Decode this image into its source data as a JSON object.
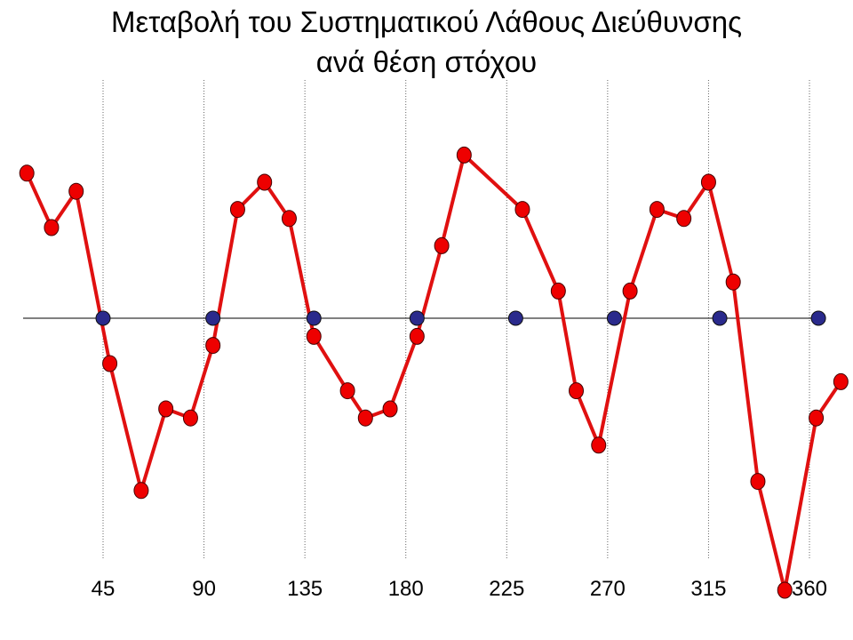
{
  "chart_data": {
    "type": "line",
    "title_line1": "Μεταβολή του Συστηματικού Λάθους Διεύθυνσης",
    "title_line2": "ανά θέση στόχου",
    "xlabel": "",
    "ylabel": "",
    "xlim": [
      4,
      370
    ],
    "ylim": [
      -1.5,
      0.95
    ],
    "grid": "vertical-dotted",
    "legend": "none",
    "x_ticks": [
      45,
      90,
      135,
      180,
      225,
      270,
      315,
      360
    ],
    "colors": {
      "line": "#e01010",
      "marker": "#ee0000",
      "zero_marker": "#2a2a8c"
    },
    "series": [
      {
        "type": "line",
        "points": [
          [
            11,
            0.8
          ],
          [
            22,
            0.5
          ],
          [
            33,
            0.7
          ],
          [
            48,
            -0.25
          ],
          [
            62,
            -0.95
          ],
          [
            73,
            -0.5
          ],
          [
            84,
            -0.55
          ],
          [
            94,
            -0.15
          ],
          [
            105,
            0.6
          ],
          [
            117,
            0.75
          ],
          [
            128,
            0.55
          ],
          [
            139,
            -0.1
          ],
          [
            154,
            -0.4
          ],
          [
            162,
            -0.55
          ],
          [
            173,
            -0.5
          ],
          [
            185,
            -0.1
          ],
          [
            196,
            0.4
          ],
          [
            206,
            0.9
          ],
          [
            232,
            0.6
          ],
          [
            248,
            0.15
          ],
          [
            256,
            -0.4
          ],
          [
            266,
            -0.7
          ],
          [
            280,
            0.15
          ],
          [
            292,
            0.6
          ],
          [
            304,
            0.55
          ],
          [
            315,
            0.75
          ],
          [
            326,
            0.2
          ],
          [
            337,
            -0.9
          ],
          [
            349,
            -1.5
          ],
          [
            363,
            -0.55
          ],
          [
            374,
            -0.35
          ]
        ]
      },
      {
        "type": "points",
        "points": [
          [
            45,
            0
          ],
          [
            94,
            0
          ],
          [
            139,
            0
          ],
          [
            185,
            0
          ],
          [
            229,
            0
          ],
          [
            273,
            0
          ],
          [
            320,
            0
          ],
          [
            364,
            0
          ]
        ]
      }
    ]
  }
}
